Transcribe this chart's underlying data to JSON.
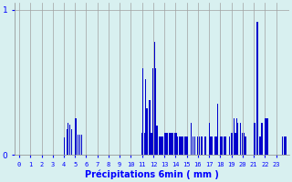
{
  "xlabel": "Précipitations 6min ( mm )",
  "background_color": "#d8f0f0",
  "bar_color": "#0000cc",
  "grid_color": "#a0a0a0",
  "ylim": [
    0,
    1.05
  ],
  "yticks": [
    0,
    1
  ],
  "num_bars": 240,
  "values": [
    0,
    0,
    0,
    0,
    0,
    0,
    0,
    0,
    0,
    0,
    0,
    0,
    0,
    0,
    0,
    0,
    0,
    0,
    0,
    0,
    0,
    0,
    0,
    0,
    0,
    0,
    0,
    0,
    0,
    0,
    0,
    0,
    0,
    0,
    0,
    0,
    0,
    0,
    0,
    0,
    0.12,
    0,
    0,
    0.18,
    0.22,
    0.21,
    0,
    0.18,
    0,
    0,
    0.25,
    0.25,
    0,
    0.14,
    0.14,
    0,
    0.14,
    0,
    0,
    0,
    0,
    0,
    0,
    0,
    0,
    0,
    0,
    0,
    0,
    0,
    0,
    0,
    0,
    0,
    0,
    0,
    0,
    0,
    0,
    0,
    0,
    0,
    0,
    0,
    0,
    0,
    0,
    0,
    0,
    0,
    0,
    0,
    0,
    0,
    0,
    0,
    0,
    0,
    0,
    0,
    0,
    0,
    0,
    0,
    0,
    0,
    0,
    0,
    0,
    0,
    0.15,
    0.6,
    0.15,
    0.52,
    0.32,
    0.32,
    0.38,
    0.38,
    0.15,
    0.15,
    0.6,
    0.78,
    0.6,
    0.2,
    0.2,
    0.13,
    0.13,
    0.13,
    0.13,
    0.13,
    0.15,
    0.15,
    0.15,
    0.15,
    0.15,
    0.15,
    0.15,
    0.15,
    0.15,
    0.15,
    0.15,
    0.15,
    0.13,
    0.13,
    0.13,
    0.13,
    0.13,
    0.13,
    0.13,
    0.13,
    0.13,
    0.13,
    0,
    0,
    0.22,
    0,
    0.13,
    0.13,
    0,
    0,
    0.13,
    0.13,
    0,
    0.13,
    0.13,
    0,
    0.13,
    0.13,
    0,
    0,
    0.22,
    0.13,
    0.13,
    0.13,
    0.13,
    0.13,
    0.13,
    0.13,
    0.35,
    0,
    0.13,
    0.13,
    0.13,
    0.13,
    0.13,
    0.13,
    0,
    0,
    0.13,
    0,
    0.15,
    0.15,
    0.25,
    0.15,
    0.15,
    0.25,
    0.22,
    0,
    0.22,
    0,
    0.15,
    0.15,
    0.13,
    0.13,
    0,
    0,
    0,
    0,
    0,
    0,
    0.22,
    0.22,
    0,
    0.92,
    0.92,
    0.13,
    0.13,
    0.22,
    0.22,
    0,
    0.25,
    0.25,
    0.25,
    0.25,
    0,
    0,
    0,
    0,
    0,
    0,
    0,
    0,
    0,
    0,
    0,
    0,
    0.13,
    0.13,
    0.13,
    0.13
  ]
}
